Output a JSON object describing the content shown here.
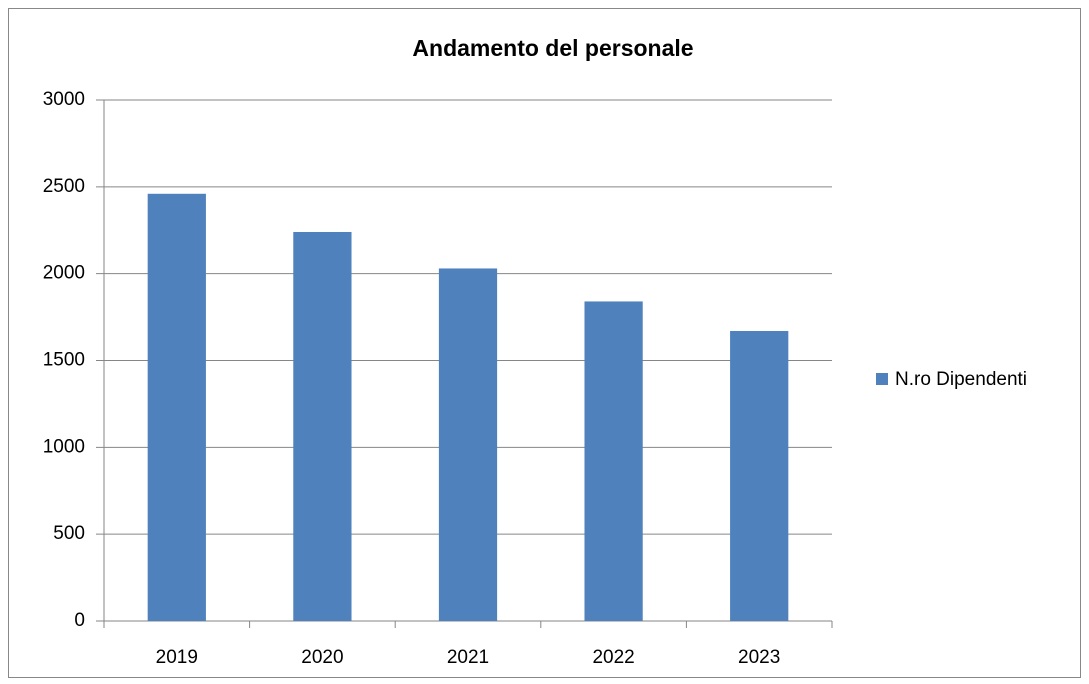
{
  "chart_data": {
    "type": "bar",
    "title": "Andamento del personale",
    "categories": [
      "2019",
      "2020",
      "2021",
      "2022",
      "2023"
    ],
    "series": [
      {
        "name": "N.ro Dipendenti",
        "color": "#4f81bd",
        "values": [
          2460,
          2240,
          2030,
          1840,
          1670
        ]
      }
    ],
    "ylim": [
      0,
      3000
    ],
    "yticks": [
      0,
      500,
      1000,
      1500,
      2000,
      2500,
      3000
    ],
    "grid": true,
    "legend": "right"
  }
}
